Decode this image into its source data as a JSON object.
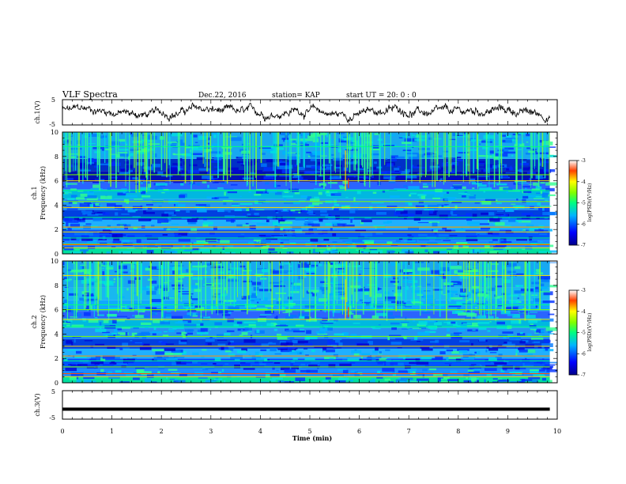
{
  "header": {
    "title": "VLF Spectra",
    "date": "Dec.22, 2016",
    "station": "station= KAP",
    "start": "start  UT =   20: 0  : 0"
  },
  "chart_data": [
    {
      "type": "line",
      "panel": "ch1_waveform",
      "ylabel": "ch.1(V)",
      "xlim": [
        0,
        10
      ],
      "ylim": [
        -5,
        5
      ],
      "yticks": [
        "5",
        "-5"
      ],
      "description_values": {
        "x_end": 9.85,
        "approx_range": [
          -3,
          3
        ]
      }
    },
    {
      "type": "heatmap",
      "panel": "ch1_spectrogram",
      "ylabel_top": "ch.1",
      "ylabel": "Frequency (kHz)",
      "xlim": [
        0,
        10
      ],
      "ylim": [
        0,
        10
      ],
      "yticks": [
        "0",
        "2",
        "4",
        "6",
        "8",
        "10"
      ],
      "colorbar": {
        "label": "log(PSD)(V²/Hz)",
        "range": [
          -7,
          -3
        ],
        "ticks": [
          "-3",
          "-4",
          "-5",
          "-6",
          "-7"
        ]
      },
      "bands_khz": [
        0.5,
        0.8,
        1.3,
        1.8,
        2.2,
        3.0,
        3.8,
        4.3,
        5.2,
        6.0,
        6.5,
        8.8
      ]
    },
    {
      "type": "heatmap",
      "panel": "ch2_spectrogram",
      "ylabel_top": "ch.2",
      "ylabel": "Frequency (kHz)",
      "xlim": [
        0,
        10
      ],
      "ylim": [
        0,
        10
      ],
      "yticks": [
        "0",
        "2",
        "4",
        "6",
        "8",
        "10"
      ],
      "colorbar": {
        "label": "log(PSD)(V²/Hz)",
        "range": [
          -7,
          -3
        ],
        "ticks": [
          "-3",
          "-4",
          "-5",
          "-6",
          "-7"
        ]
      },
      "bands_khz": [
        0.5,
        1.3,
        1.8,
        3.0,
        3.8,
        4.6,
        5.2,
        6.0,
        6.4,
        8.8
      ]
    },
    {
      "type": "line",
      "panel": "ch3_waveform",
      "ylabel": "ch.3(V)",
      "xlim": [
        0,
        10
      ],
      "ylim": [
        -5,
        5
      ],
      "yticks": [
        "5",
        "-5"
      ],
      "value": -1.5,
      "xlabel": "Time (min)",
      "xticks": [
        "0",
        "1",
        "2",
        "3",
        "4",
        "5",
        "6",
        "7",
        "8",
        "9",
        "10"
      ]
    }
  ],
  "colors": {
    "frame": "#000000",
    "background": "#ffffff"
  }
}
